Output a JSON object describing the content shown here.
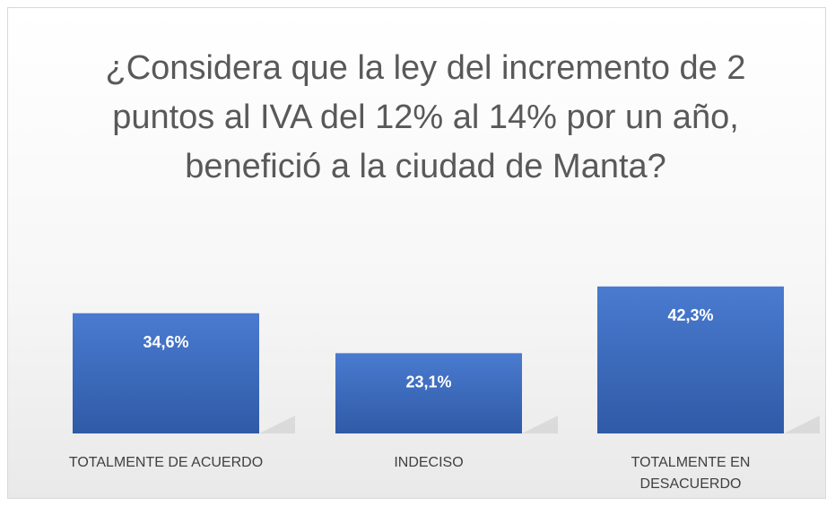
{
  "chart_data": {
    "type": "bar",
    "title": "¿Considera que la ley del incremento de 2 puntos al IVA del 12% al 14% por un año, benefició a la ciudad de Manta?",
    "categories": [
      "TOTALMENTE DE ACUERDO",
      "INDECISO",
      "TOTALMENTE EN DESACUERDO"
    ],
    "values": [
      34.6,
      23.1,
      42.3
    ],
    "value_labels": [
      "34,6%",
      "23,1%",
      "42,3%"
    ],
    "color": "#4472c4"
  }
}
